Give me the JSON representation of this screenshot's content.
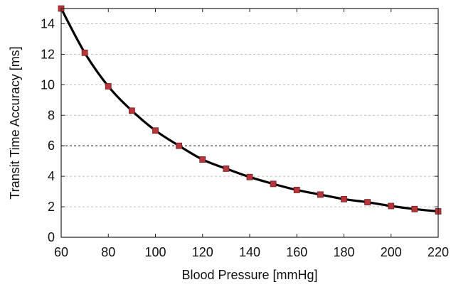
{
  "chart_data": {
    "type": "line",
    "title": "",
    "xlabel": "Blood Pressure [mmHg]",
    "ylabel": "Transit Time Accuracy [ms]",
    "xlim": [
      60,
      220
    ],
    "ylim": [
      0,
      15
    ],
    "x_ticks": [
      60,
      80,
      100,
      120,
      140,
      160,
      180,
      200,
      220
    ],
    "y_ticks": [
      0,
      2,
      4,
      6,
      8,
      10,
      12,
      14
    ],
    "grid": "horizontal dashed",
    "highlighted_gridline": 6,
    "legend": "none",
    "series": [
      {
        "marker": "square",
        "line_color": "#000000",
        "marker_color": "#b8353a",
        "x": [
          60,
          70,
          80,
          90,
          100,
          110,
          120,
          130,
          140,
          150,
          160,
          170,
          180,
          190,
          200,
          210,
          220
        ],
        "y": [
          15.0,
          12.1,
          9.9,
          8.3,
          7.0,
          6.0,
          5.1,
          4.5,
          3.95,
          3.5,
          3.1,
          2.8,
          2.5,
          2.3,
          2.05,
          1.85,
          1.7
        ]
      }
    ]
  }
}
